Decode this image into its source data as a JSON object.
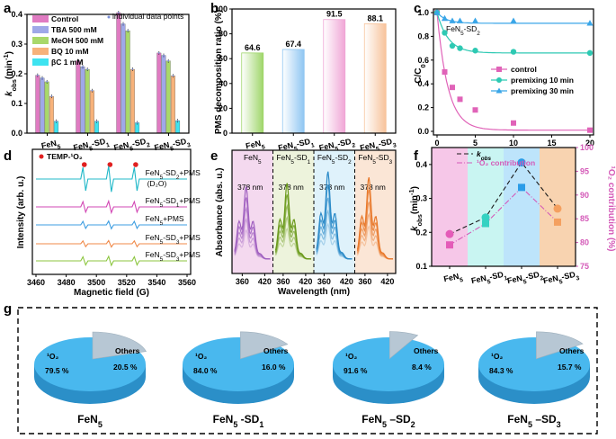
{
  "figure": {
    "panel_labels": [
      "a",
      "b",
      "c",
      "d",
      "e",
      "f",
      "g"
    ]
  },
  "chart_data": [
    {
      "panel": "a",
      "type": "bar",
      "ylabel_main": "k",
      "ylabel_sub": "obs",
      "ylabel_unit": "(min",
      "ylabel_exp": "-1",
      "ylabel_close": ")",
      "ylim": [
        0,
        0.4
      ],
      "yticks": [
        "0.0",
        "0.1",
        "0.2",
        "0.3",
        "0.4"
      ],
      "categories": [
        "FeN5",
        "FeN5-SD1",
        "FeN5-SD2",
        "FeN5-SD3"
      ],
      "category_labels": [
        {
          "main": "FeN",
          "sub": "5",
          "rest": ""
        },
        {
          "main": "FeN",
          "sub": "5",
          "rest": "-SD",
          "sub2": "1"
        },
        {
          "main": "FeN",
          "sub": "5",
          "rest": "-SD",
          "sub2": "2"
        },
        {
          "main": "FeN",
          "sub": "5",
          "rest": "-SD",
          "sub2": "3"
        }
      ],
      "series": [
        {
          "name": "Control",
          "color": "#e07bc2",
          "values": [
            0.195,
            0.244,
            0.406,
            0.27
          ]
        },
        {
          "name": "TBA 500 mM",
          "color": "#9fa8e8",
          "values": [
            0.186,
            0.224,
            0.368,
            0.262
          ]
        },
        {
          "name": "MeOH 500 mM",
          "color": "#a9d86a",
          "values": [
            0.173,
            0.215,
            0.345,
            0.243
          ]
        },
        {
          "name": "BQ 10 mM",
          "color": "#f7b27a",
          "values": [
            0.124,
            0.143,
            0.215,
            0.193
          ]
        },
        {
          "name": "βC 1 mM",
          "color": "#3ee3f0",
          "values": [
            0.04,
            0.04,
            0.035,
            0.042
          ]
        }
      ],
      "legend_extra": "individual data points",
      "legend_position": "top-left"
    },
    {
      "panel": "b",
      "type": "bar",
      "ylabel": "PMS decomposition ratio (%)",
      "ylim": [
        0,
        100
      ],
      "yticks": [
        "0",
        "20",
        "40",
        "60",
        "80",
        "100"
      ],
      "categories": [
        "FeN5",
        "FeN5-SD1",
        "FeN5-SD2",
        "FeN5-SD3"
      ],
      "category_labels": [
        {
          "main": "FeN",
          "sub": "5",
          "rest": ""
        },
        {
          "main": "FeN",
          "sub": "5",
          "rest": "-SD",
          "sub2": "1"
        },
        {
          "main": "FeN",
          "sub": "5",
          "rest": "-SD",
          "sub2": "2"
        },
        {
          "main": "FeN",
          "sub": "5",
          "rest": "-SD",
          "sub2": "3"
        }
      ],
      "values": [
        64.6,
        67.4,
        91.5,
        88.1
      ],
      "value_labels": [
        "64.6",
        "67.4",
        "91.5",
        "88.1"
      ],
      "colors": [
        "#9fd66a",
        "#8fc6f2",
        "#f0a6d6",
        "#f7c29a"
      ]
    },
    {
      "panel": "c",
      "type": "line",
      "xlabel": "Time (min)",
      "ylabel_main": "C/C",
      "ylabel_sub": "0",
      "xlim": [
        0,
        20
      ],
      "ylim": [
        0,
        1.0
      ],
      "xticks": [
        "0",
        "5",
        "10",
        "15",
        "20"
      ],
      "yticks": [
        "0.0",
        "0.2",
        "0.4",
        "0.6",
        "0.8",
        "1.0"
      ],
      "annotation": {
        "main": "FeN",
        "sub": "5",
        "rest": "-SD",
        "sub2": "2"
      },
      "series": [
        {
          "name": "control",
          "color": "#e063b8",
          "marker": "square",
          "x": [
            0,
            1,
            2,
            3,
            5,
            10,
            20
          ],
          "y": [
            1.0,
            0.5,
            0.37,
            0.27,
            0.18,
            0.07,
            0.01
          ]
        },
        {
          "name": "premixing 10 min",
          "color": "#2ec9b3",
          "marker": "circle",
          "x": [
            0,
            1,
            2,
            3,
            5,
            10,
            20
          ],
          "y": [
            1.0,
            0.83,
            0.72,
            0.7,
            0.68,
            0.67,
            0.66
          ]
        },
        {
          "name": "premixing 30 min",
          "color": "#3aa6e8",
          "marker": "triangle",
          "x": [
            0,
            1,
            2,
            3,
            5,
            10,
            20
          ],
          "y": [
            1.0,
            0.95,
            0.93,
            0.93,
            0.93,
            0.93,
            0.91
          ]
        }
      ],
      "legend_position": "right"
    },
    {
      "panel": "d",
      "type": "line",
      "xlabel": "Magnetic field (G)",
      "ylabel": "Intensity (arb. u.)",
      "xlim": [
        3460,
        3560
      ],
      "xticks": [
        "3460",
        "3480",
        "3500",
        "3520",
        "3540",
        "3560"
      ],
      "legend_marker_label": "TEMP-¹O₂",
      "peaks_x": [
        3492,
        3509,
        3526
      ],
      "series": [
        {
          "label_main": "FeN",
          "label_sub": "5",
          "label_rest": "-SD",
          "label_sub2": "2",
          "label_tail": "+PMS",
          "label_extra": "(D₂O)",
          "color": "#20b8c8",
          "amplitude": 1.0
        },
        {
          "label_main": "FeN",
          "label_sub": "5",
          "label_rest": "-SD",
          "label_sub2": "1",
          "label_tail": "+PMS",
          "label_extra": "",
          "color": "#d247b4",
          "amplitude": 0.45
        },
        {
          "label_main": "FeN",
          "label_sub": "5",
          "label_rest": "",
          "label_sub2": "",
          "label_tail": "+PMS",
          "label_extra": "",
          "color": "#3c9de0",
          "amplitude": 0.3
        },
        {
          "label_main": "FeN",
          "label_sub": "5",
          "label_rest": "-SD",
          "label_sub2": "3",
          "label_tail": "+PMS",
          "label_extra": "",
          "color": "#f08a4a",
          "amplitude": 0.25
        },
        {
          "label_main": "FeN",
          "label_sub": "5",
          "label_rest": "-SD",
          "label_sub2": "3",
          "label_tail": "+PMS",
          "label_extra": "",
          "color": "#8cc63f",
          "amplitude": 0.35
        }
      ]
    },
    {
      "panel": "e",
      "type": "line",
      "xlabel": "Wavelength (nm)",
      "ylabel": "Absorbance (abs. u.)",
      "xticks": [
        "360",
        "420",
        "360",
        "420",
        "360",
        "420",
        "360",
        "420"
      ],
      "segments": [
        {
          "label": {
            "main": "FeN",
            "sub": "5",
            "rest": ""
          },
          "bg": "#f4d9ef",
          "color": "#a060c0",
          "peak_label": "378 nm",
          "peak_height": 0.62
        },
        {
          "label": {
            "main": "FeN",
            "sub": "5",
            "rest": "-SD",
            "sub2": "1"
          },
          "bg": "#edf3dc",
          "color": "#6a9a1a",
          "peak_label": "378 nm",
          "peak_height": 0.65
        },
        {
          "label": {
            "main": "FeN",
            "sub": "5",
            "rest": "-SD",
            "sub2": "2"
          },
          "bg": "#dff2fb",
          "color": "#2a8ac8",
          "peak_label": "378 nm",
          "peak_height": 0.75
        },
        {
          "label": {
            "main": "FeN",
            "sub": "5",
            "rest": "-SD",
            "sub2": "3"
          },
          "bg": "#fbe6d6",
          "color": "#e8782a",
          "peak_label": "378 nm",
          "peak_height": 0.7
        }
      ]
    },
    {
      "panel": "f",
      "type": "line",
      "ylabel_left_main": "k",
      "ylabel_left_sub": "obs",
      "ylabel_left_unit": "(min",
      "ylabel_left_exp": "-1",
      "ylabel_left_close": ")",
      "ylabel_right": "¹O₂ contribution (%)",
      "ylim_left": [
        0.1,
        0.45
      ],
      "ylim_right": [
        75,
        100
      ],
      "yticks_left": [
        "0.1",
        "0.2",
        "0.3",
        "0.4"
      ],
      "yticks_right": [
        "75",
        "80",
        "85",
        "90",
        "95",
        "100"
      ],
      "categories": [
        "FeN5",
        "FeN5-SD1",
        "FeN5-SD2",
        "FeN5-SD3"
      ],
      "category_labels": [
        {
          "main": "FeN",
          "sub": "5",
          "rest": ""
        },
        {
          "main": "FeN",
          "sub": "5",
          "rest": "-SD",
          "sub2": "1"
        },
        {
          "main": "FeN",
          "sub": "5",
          "rest": "-SD",
          "sub2": "2"
        },
        {
          "main": "FeN",
          "sub": "5",
          "rest": "-SD",
          "sub2": "3"
        }
      ],
      "band_colors": [
        "#f6c7e8",
        "#c9f5f2",
        "#bde4fb",
        "#f8d3b0"
      ],
      "series": [
        {
          "name_main": "k",
          "name_sub": "obs",
          "color": "#1a1a1a",
          "dash": "5,3",
          "axis": "left",
          "values": [
            0.195,
            0.244,
            0.406,
            0.27
          ],
          "marker_colors": [
            "#e45bb8",
            "#35d2c2",
            "#2a9ce8",
            "#f4a060"
          ]
        },
        {
          "name": "¹O₂ contribution",
          "color": "#d45ab8",
          "dash": "6,2,1,2",
          "axis": "right",
          "values": [
            79.5,
            84.0,
            91.6,
            84.3
          ],
          "marker_colors": [
            "#e45bb8",
            "#35d2c2",
            "#2a9ce8",
            "#f4a060"
          ]
        }
      ],
      "legend_position": "top-left"
    },
    {
      "panel": "g",
      "type": "pie",
      "pies": [
        {
          "title": {
            "main": "FeN",
            "sub": "5",
            "rest": ""
          },
          "o2_label": "¹O₂",
          "o2_value": "79.5 %",
          "others_label": "Others",
          "others_value": "20.5 %",
          "o2": 79.5,
          "others": 20.5
        },
        {
          "title": {
            "main": "FeN",
            "sub": "5",
            "rest": " -SD",
            "sub2": "1"
          },
          "o2_label": "¹O₂",
          "o2_value": "84.0 %",
          "others_label": "Others",
          "others_value": "16.0 %",
          "o2": 84.0,
          "others": 16.0
        },
        {
          "title": {
            "main": "FeN",
            "sub": "5",
            "rest": " –SD",
            "sub2": "2"
          },
          "o2_label": "¹O₂",
          "o2_value": "91.6 %",
          "others_label": "Others",
          "others_value": "8.4 %",
          "o2": 91.6,
          "others": 8.4
        },
        {
          "title": {
            "main": "FeN",
            "sub": "5",
            "rest": " –SD",
            "sub2": "3"
          },
          "o2_label": "¹O₂",
          "o2_value": "84.3 %",
          "others_label": "Others",
          "others_value": "15.7 %",
          "o2": 84.3,
          "others": 15.7
        }
      ],
      "o2_color": "#49b8ee",
      "others_color": "#b7c7d4"
    }
  ]
}
